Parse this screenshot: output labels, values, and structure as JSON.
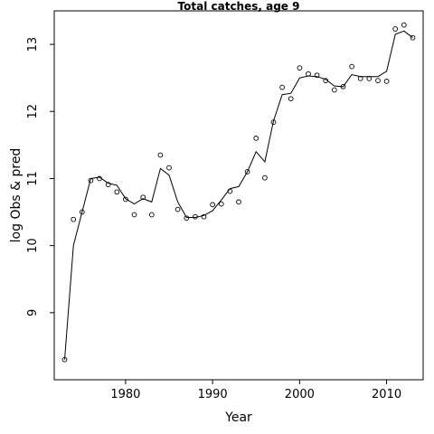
{
  "chart_data": {
    "type": "scatter",
    "title": "Total catches, age 9",
    "xlabel": "Year",
    "ylabel": "log Obs & pred",
    "xlim": [
      1971.8,
      2014.2
    ],
    "ylim": [
      8.0,
      13.5
    ],
    "x_ticks": [
      1980,
      1990,
      2000,
      2010
    ],
    "y_ticks": [
      9,
      10,
      11,
      12,
      13
    ],
    "grid": false,
    "series": [
      {
        "style": "points",
        "marker": "open-circle",
        "x": [
          1973,
          1974,
          1975,
          1976,
          1977,
          1978,
          1979,
          1980,
          1981,
          1982,
          1983,
          1984,
          1985,
          1986,
          1987,
          1988,
          1989,
          1990,
          1991,
          1992,
          1993,
          1994,
          1995,
          1996,
          1997,
          1998,
          1999,
          2000,
          2001,
          2002,
          2003,
          2004,
          2005,
          2006,
          2007,
          2008,
          2009,
          2010,
          2011,
          2012,
          2013
        ],
        "y": [
          8.3,
          10.39,
          10.5,
          10.97,
          11.0,
          10.91,
          10.8,
          10.69,
          10.46,
          10.72,
          10.46,
          11.35,
          11.16,
          10.54,
          10.41,
          10.43,
          10.43,
          10.61,
          10.62,
          10.81,
          10.65,
          11.1,
          11.6,
          11.01,
          11.84,
          12.36,
          12.19,
          12.65,
          12.56,
          12.54,
          12.46,
          12.32,
          12.37,
          12.67,
          12.49,
          12.49,
          12.46,
          12.45,
          13.23,
          13.29,
          13.1
        ]
      },
      {
        "style": "line",
        "x": [
          1973,
          1974,
          1975,
          1976,
          1977,
          1978,
          1979,
          1980,
          1981,
          1982,
          1983,
          1984,
          1985,
          1986,
          1987,
          1988,
          1989,
          1990,
          1991,
          1992,
          1993,
          1994,
          1995,
          1996,
          1997,
          1998,
          1999,
          2000,
          2001,
          2002,
          2003,
          2004,
          2005,
          2006,
          2007,
          2008,
          2009,
          2010,
          2011,
          2012,
          2013
        ],
        "y": [
          8.3,
          10.0,
          10.5,
          11.0,
          11.02,
          10.93,
          10.9,
          10.7,
          10.62,
          10.7,
          10.65,
          11.15,
          11.05,
          10.65,
          10.42,
          10.42,
          10.45,
          10.52,
          10.68,
          10.85,
          10.88,
          11.1,
          11.4,
          11.25,
          11.86,
          12.25,
          12.27,
          12.5,
          12.53,
          12.52,
          12.48,
          12.38,
          12.37,
          12.55,
          12.52,
          12.52,
          12.52,
          12.6,
          13.15,
          13.2,
          13.1
        ]
      }
    ]
  }
}
